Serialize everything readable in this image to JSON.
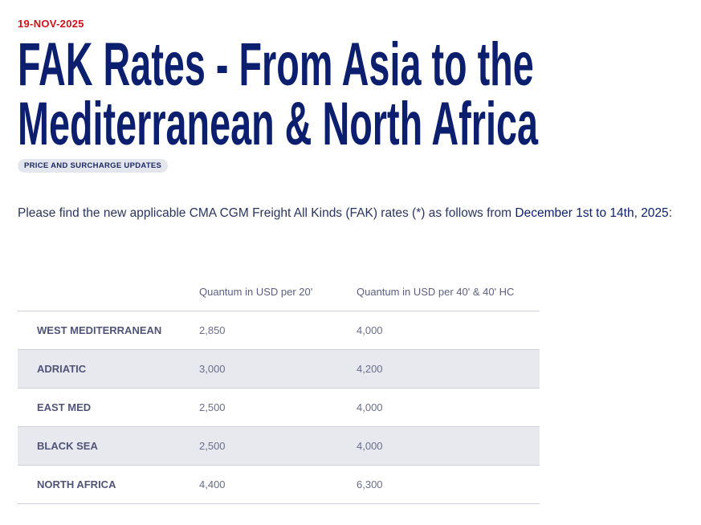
{
  "date": "19-NOV-2025",
  "title": {
    "line1": "FAK Rates - From Asia to the",
    "line2": "Mediterranean & North Africa"
  },
  "tag": "PRICE AND SURCHARGE UPDATES",
  "intro": {
    "text": "Please find the new applicable CMA CGM Freight All Kinds (FAK) rates (*) as follows from ",
    "highlight": "December 1st to 14th, 2025",
    "end": ":"
  },
  "table": {
    "headers": [
      "",
      "Quantum in USD per 20'",
      "Quantum in USD per 40' & 40' HC"
    ],
    "rows": [
      {
        "zone": "WEST MEDITERRANEAN",
        "v20": "2,850",
        "v40": "4,000"
      },
      {
        "zone": "ADRIATIC",
        "v20": "3,000",
        "v40": "4,200"
      },
      {
        "zone": "EAST MED",
        "v20": "2,500",
        "v40": "4,000"
      },
      {
        "zone": "BLACK SEA",
        "v20": "2,500",
        "v40": "4,000"
      },
      {
        "zone": "NORTH AFRICA",
        "v20": "4,400",
        "v40": "6,300"
      }
    ]
  },
  "colors": {
    "date": "#d0121b",
    "title": "#0c1f6e",
    "stripe": "#e8e9ef"
  }
}
